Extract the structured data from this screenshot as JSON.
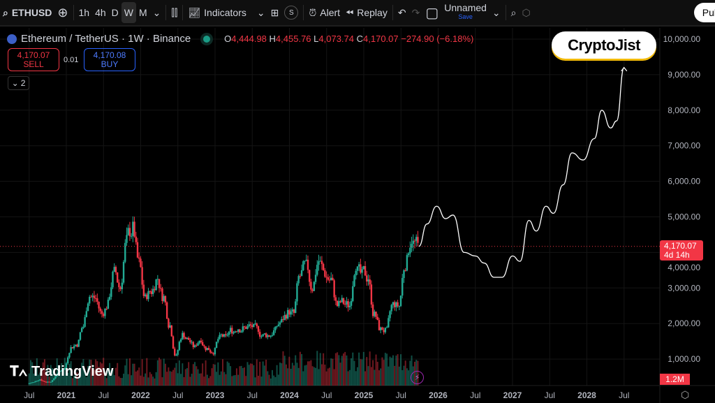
{
  "toolbar": {
    "symbol": "ETHUSD",
    "timeframes": [
      "1h",
      "4h",
      "D",
      "W",
      "M"
    ],
    "active_timeframe": "W",
    "indicators": "Indicators",
    "s_badge": "S",
    "alert": "Alert",
    "replay": "Replay",
    "layout_name": "Unnamed",
    "save": "Save",
    "publish": "Pul"
  },
  "legend": {
    "title": "Ethereum / TetherUS · 1W · Binance",
    "o_label": "O",
    "o": "4,444.98",
    "h_label": "H",
    "h": "4,455.76",
    "l_label": "L",
    "l": "4,073.74",
    "c_label": "C",
    "c": "4,170.07",
    "change": "−274.90 (−6.18%)"
  },
  "trade": {
    "sell_price": "4,170.07",
    "sell_label": "SELL",
    "spread": "0.01",
    "buy_price": "4,170.08",
    "buy_label": "BUY",
    "collapse_count": "2"
  },
  "watermark": "CryptoJist",
  "tv_logo": "TradingView",
  "price_tag": {
    "price": "4,170.07",
    "countdown": "4d 14h"
  },
  "volume_tag": "1.2M",
  "colors": {
    "up": "#22ab94",
    "down": "#f23645",
    "projection": "#ffffff",
    "bg": "#000000"
  },
  "chart_data": {
    "type": "candlestick",
    "title": "Ethereum / TetherUS · 1W · Binance",
    "ylim": [
      0,
      10400
    ],
    "y_ticks": [
      "10,000.00",
      "9,000.00",
      "8,000.00",
      "7,000.00",
      "6,000.00",
      "5,000.00",
      "4,000.00",
      "3,000.00",
      "2,000.00",
      "1,000.00"
    ],
    "y_tick_values": [
      10000,
      9000,
      8000,
      7000,
      6000,
      5000,
      4000,
      3000,
      2000,
      1000
    ],
    "x_ticks": [
      "Jul",
      "2021",
      "Jul",
      "2022",
      "Jul",
      "2023",
      "Jul",
      "2024",
      "Jul",
      "2025",
      "Jul",
      "2026",
      "Jul",
      "2027",
      "Jul",
      "2028",
      "Jul"
    ],
    "x_tick_values": [
      2020.5,
      2021,
      2021.5,
      2022,
      2022.5,
      2023,
      2023.5,
      2024,
      2024.5,
      2025,
      2025.5,
      2026,
      2026.5,
      2027,
      2027.5,
      2028,
      2028.5
    ],
    "xlim": [
      2020.0,
      2028.95
    ],
    "history_start": 2020.5,
    "history_step": 0.0833,
    "closes": [
      345,
      430,
      360,
      385,
      615,
      737,
      1310,
      1420,
      1920,
      2770,
      2710,
      2270,
      2530,
      3430,
      3000,
      4290,
      4630,
      3680,
      2690,
      2920,
      3280,
      2730,
      1940,
      1070,
      1680,
      1550,
      1330,
      1570,
      1290,
      1200,
      1590,
      1610,
      1820,
      1870,
      1870,
      1930,
      1860,
      1650,
      1670,
      1810,
      2050,
      2280,
      2280,
      3340,
      3600,
      3010,
      3760,
      3430,
      3230,
      2510,
      2600,
      2510,
      3700,
      3330,
      3300,
      2230,
      1820,
      1790,
      2530,
      2490,
      3700,
      4400,
      4170
    ],
    "last_price": 4170.07,
    "projection": [
      [
        2025.74,
        4170
      ],
      [
        2025.85,
        4800
      ],
      [
        2025.98,
        5300
      ],
      [
        2026.1,
        4950
      ],
      [
        2026.2,
        5050
      ],
      [
        2026.35,
        4000
      ],
      [
        2026.5,
        3900
      ],
      [
        2026.62,
        3700
      ],
      [
        2026.75,
        3300
      ],
      [
        2026.86,
        3300
      ],
      [
        2027.0,
        3900
      ],
      [
        2027.1,
        3750
      ],
      [
        2027.22,
        4900
      ],
      [
        2027.32,
        4600
      ],
      [
        2027.45,
        5300
      ],
      [
        2027.55,
        5100
      ],
      [
        2027.68,
        5900
      ],
      [
        2027.8,
        6800
      ],
      [
        2027.95,
        6600
      ],
      [
        2028.1,
        7200
      ],
      [
        2028.2,
        8000
      ],
      [
        2028.32,
        7500
      ],
      [
        2028.4,
        7700
      ],
      [
        2028.5,
        9200
      ]
    ]
  }
}
